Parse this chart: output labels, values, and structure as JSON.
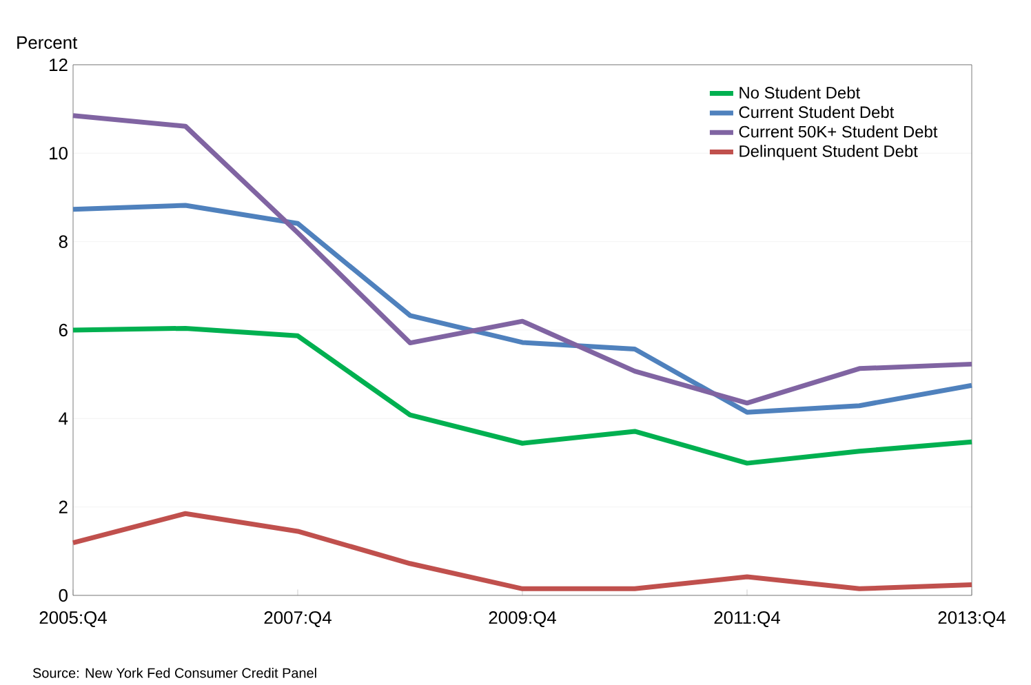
{
  "chart_data": {
    "type": "line",
    "ylabel": "Percent",
    "categories": [
      "2005:Q4",
      null,
      "2007:Q4",
      null,
      "2009:Q4",
      null,
      "2011:Q4",
      null,
      "2013:Q4"
    ],
    "series": [
      {
        "name": "No Student Debt",
        "color": "#00b050",
        "values": [
          6.0,
          6.04,
          5.87,
          4.08,
          3.44,
          3.71,
          2.99,
          3.26,
          3.47
        ]
      },
      {
        "name": "Current Student Debt",
        "color": "#4f81bd",
        "values": [
          8.73,
          8.82,
          8.41,
          6.33,
          5.72,
          5.57,
          4.14,
          4.29,
          4.75
        ]
      },
      {
        "name": "Current 50K+ Student Debt",
        "color": "#8064a2",
        "values": [
          10.85,
          10.61,
          8.2,
          5.71,
          6.2,
          5.07,
          4.35,
          5.13,
          5.23
        ]
      },
      {
        "name": "Delinquent Student Debt",
        "color": "#c0504d",
        "values": [
          1.19,
          1.85,
          1.45,
          0.72,
          0.15,
          0.15,
          0.42,
          0.15,
          0.24
        ]
      }
    ],
    "ylim": [
      0,
      12
    ],
    "yticks": [
      0,
      2,
      4,
      6,
      8,
      10,
      12
    ],
    "grid": "y",
    "legend": "top right",
    "marker": "none",
    "line_style": "solid",
    "annotations": [
      "Source: New York Fed Consumer Credit Panel"
    ]
  }
}
